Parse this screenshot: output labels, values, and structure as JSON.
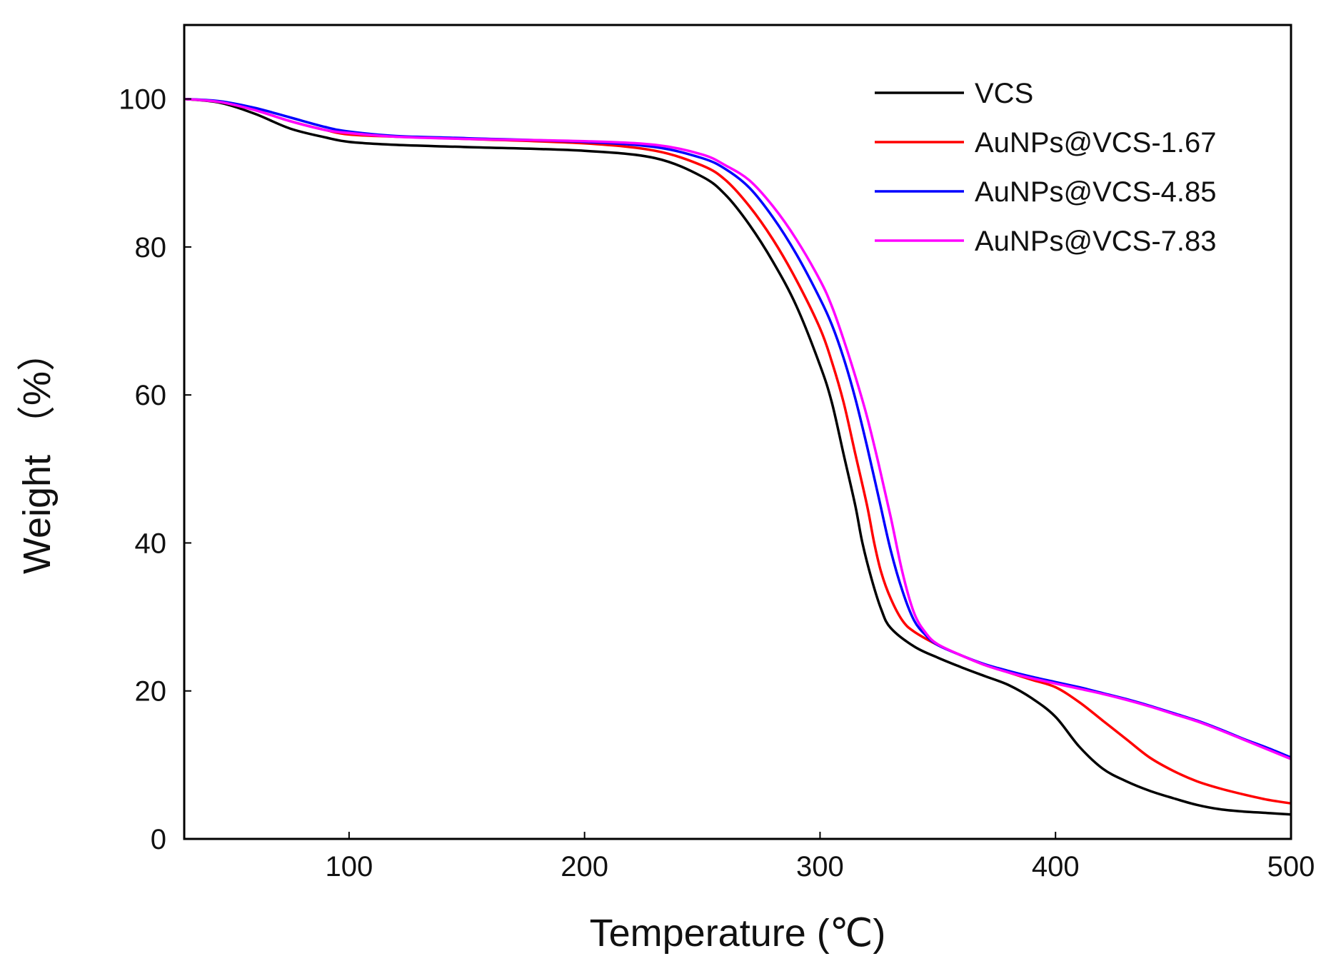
{
  "chart_data": {
    "type": "line",
    "xlabel": "Temperature (℃)",
    "ylabel": "Weight （%）",
    "xlim": [
      30,
      500
    ],
    "ylim": [
      0,
      110
    ],
    "xticks": [
      100,
      200,
      300,
      400,
      500
    ],
    "yticks": [
      0,
      20,
      40,
      60,
      80,
      100
    ],
    "grid": false,
    "legend_position": "top-right",
    "series": [
      {
        "name": "VCS",
        "color": "#000000",
        "points": [
          [
            30,
            100
          ],
          [
            45,
            99.5
          ],
          [
            60,
            98
          ],
          [
            75,
            96
          ],
          [
            90,
            94.8
          ],
          [
            100,
            94.2
          ],
          [
            120,
            93.8
          ],
          [
            150,
            93.5
          ],
          [
            200,
            93
          ],
          [
            230,
            92
          ],
          [
            250,
            89.5
          ],
          [
            260,
            87
          ],
          [
            270,
            83
          ],
          [
            280,
            78
          ],
          [
            290,
            72
          ],
          [
            300,
            64
          ],
          [
            305,
            59
          ],
          [
            310,
            52
          ],
          [
            315,
            45
          ],
          [
            318,
            40
          ],
          [
            322,
            35
          ],
          [
            326,
            31
          ],
          [
            330,
            28.5
          ],
          [
            340,
            26
          ],
          [
            350,
            24.5
          ],
          [
            360,
            23.2
          ],
          [
            370,
            22
          ],
          [
            380,
            20.8
          ],
          [
            390,
            19
          ],
          [
            400,
            16.5
          ],
          [
            410,
            12.5
          ],
          [
            420,
            9.5
          ],
          [
            430,
            7.8
          ],
          [
            440,
            6.5
          ],
          [
            450,
            5.5
          ],
          [
            460,
            4.6
          ],
          [
            470,
            4
          ],
          [
            480,
            3.7
          ],
          [
            490,
            3.5
          ],
          [
            500,
            3.3
          ]
        ]
      },
      {
        "name": "AuNPs@VCS-1.67",
        "color": "#ff0000",
        "points": [
          [
            30,
            100
          ],
          [
            45,
            99.6
          ],
          [
            60,
            98.5
          ],
          [
            75,
            97
          ],
          [
            90,
            95.8
          ],
          [
            100,
            95.2
          ],
          [
            120,
            94.9
          ],
          [
            150,
            94.6
          ],
          [
            200,
            94
          ],
          [
            230,
            93
          ],
          [
            250,
            91
          ],
          [
            260,
            89
          ],
          [
            270,
            85.5
          ],
          [
            280,
            81
          ],
          [
            290,
            75.5
          ],
          [
            300,
            69
          ],
          [
            305,
            64.5
          ],
          [
            310,
            59
          ],
          [
            315,
            52
          ],
          [
            320,
            45
          ],
          [
            323,
            40
          ],
          [
            326,
            36
          ],
          [
            330,
            32.5
          ],
          [
            335,
            29.5
          ],
          [
            340,
            28
          ],
          [
            350,
            26.2
          ],
          [
            360,
            24.8
          ],
          [
            370,
            23.5
          ],
          [
            380,
            22.5
          ],
          [
            390,
            21.5
          ],
          [
            400,
            20.5
          ],
          [
            410,
            18.5
          ],
          [
            420,
            16
          ],
          [
            430,
            13.5
          ],
          [
            440,
            11
          ],
          [
            450,
            9.2
          ],
          [
            460,
            7.8
          ],
          [
            470,
            6.8
          ],
          [
            480,
            6
          ],
          [
            490,
            5.3
          ],
          [
            500,
            4.8
          ]
        ]
      },
      {
        "name": "AuNPs@VCS-4.85",
        "color": "#0000ff",
        "points": [
          [
            30,
            100
          ],
          [
            45,
            99.7
          ],
          [
            60,
            98.8
          ],
          [
            75,
            97.5
          ],
          [
            90,
            96.2
          ],
          [
            100,
            95.6
          ],
          [
            120,
            95
          ],
          [
            150,
            94.7
          ],
          [
            200,
            94.2
          ],
          [
            230,
            93.5
          ],
          [
            250,
            92
          ],
          [
            260,
            90.5
          ],
          [
            270,
            88
          ],
          [
            280,
            84
          ],
          [
            290,
            79
          ],
          [
            300,
            73
          ],
          [
            305,
            69.5
          ],
          [
            310,
            65
          ],
          [
            315,
            59.5
          ],
          [
            320,
            53
          ],
          [
            325,
            46
          ],
          [
            330,
            39
          ],
          [
            335,
            33.5
          ],
          [
            340,
            29.5
          ],
          [
            345,
            27.5
          ],
          [
            350,
            26.2
          ],
          [
            360,
            24.8
          ],
          [
            370,
            23.6
          ],
          [
            380,
            22.7
          ],
          [
            390,
            21.9
          ],
          [
            400,
            21.2
          ],
          [
            410,
            20.5
          ],
          [
            420,
            19.7
          ],
          [
            430,
            18.9
          ],
          [
            440,
            18
          ],
          [
            450,
            17
          ],
          [
            460,
            16
          ],
          [
            470,
            14.8
          ],
          [
            480,
            13.5
          ],
          [
            490,
            12.3
          ],
          [
            500,
            11
          ]
        ]
      },
      {
        "name": "AuNPs@VCS-7.83",
        "color": "#ff00ff",
        "points": [
          [
            30,
            100
          ],
          [
            45,
            99.6
          ],
          [
            60,
            98.5
          ],
          [
            75,
            97
          ],
          [
            90,
            95.8
          ],
          [
            100,
            95.4
          ],
          [
            120,
            94.9
          ],
          [
            150,
            94.6
          ],
          [
            200,
            94.3
          ],
          [
            230,
            93.8
          ],
          [
            250,
            92.5
          ],
          [
            260,
            91
          ],
          [
            270,
            89
          ],
          [
            280,
            85.5
          ],
          [
            290,
            81
          ],
          [
            300,
            75.5
          ],
          [
            305,
            72
          ],
          [
            310,
            67.5
          ],
          [
            315,
            62.5
          ],
          [
            320,
            57
          ],
          [
            325,
            50.5
          ],
          [
            330,
            43.5
          ],
          [
            335,
            36
          ],
          [
            340,
            30.5
          ],
          [
            345,
            27.8
          ],
          [
            350,
            26.3
          ],
          [
            360,
            24.8
          ],
          [
            370,
            23.5
          ],
          [
            380,
            22.5
          ],
          [
            390,
            21.7
          ],
          [
            400,
            21
          ],
          [
            410,
            20.3
          ],
          [
            420,
            19.6
          ],
          [
            430,
            18.8
          ],
          [
            440,
            17.9
          ],
          [
            450,
            16.9
          ],
          [
            460,
            15.9
          ],
          [
            470,
            14.7
          ],
          [
            480,
            13.4
          ],
          [
            490,
            12.1
          ],
          [
            500,
            10.8
          ]
        ]
      }
    ]
  }
}
